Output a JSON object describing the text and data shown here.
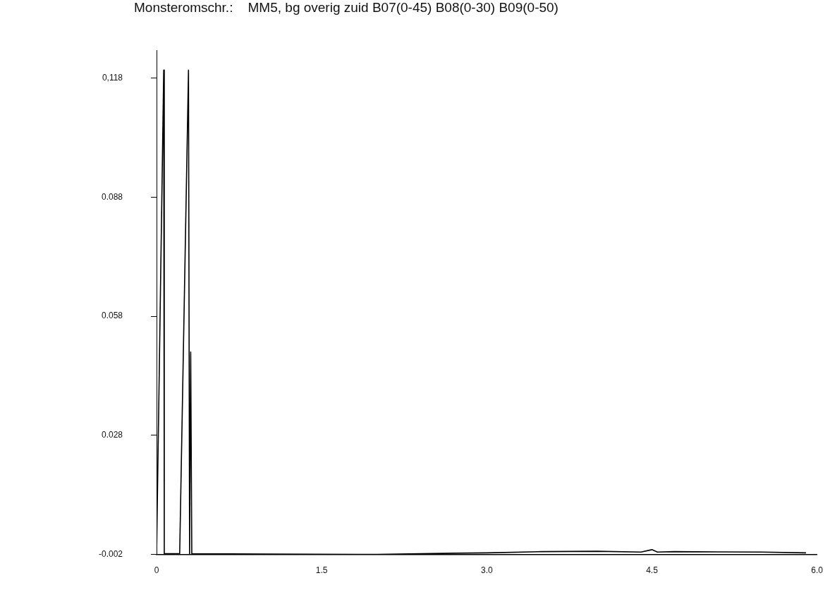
{
  "chart_data": {
    "type": "line",
    "title": "Monsteromschr.:    MM5, bg overig zuid B07(0-45) B08(0-30) B09(0-50)",
    "x": [
      0,
      0.065,
      0.07,
      0.21,
      0.29,
      0.3,
      0.31,
      0.32,
      1.0,
      2.0,
      2.7,
      3.0,
      3.5,
      4.0,
      4.4,
      4.5,
      4.55,
      4.7,
      5.5,
      5.9
    ],
    "series": [
      {
        "color": "#000000",
        "values": [
          -0.002,
          0.12,
          -0.0018,
          -0.0018,
          0.12,
          -0.0018,
          0.049,
          -0.0018,
          -0.0019,
          -0.002,
          -0.0017,
          -0.0016,
          -0.0013,
          -0.0012,
          -0.0014,
          -0.0008,
          -0.0014,
          -0.0013,
          -0.0014,
          -0.0016
        ]
      }
    ],
    "xlim": [
      0,
      6
    ],
    "xticks": [
      0,
      1.5,
      {
        "value": 3,
        "label": "3.0"
      },
      4.5,
      {
        "value": 6,
        "label": "6.0"
      }
    ],
    "ylim": [
      -0.002,
      0.125
    ],
    "yticks": [
      {
        "value": -0.002,
        "label": "-0.002"
      },
      {
        "value": 0.028,
        "label": "0.028"
      },
      {
        "value": 0.058,
        "label": "0.058"
      },
      {
        "value": 0.088,
        "label": "0.088"
      },
      {
        "value": 0.118,
        "label": "0,118"
      }
    ],
    "grid": false,
    "legend": false
  }
}
